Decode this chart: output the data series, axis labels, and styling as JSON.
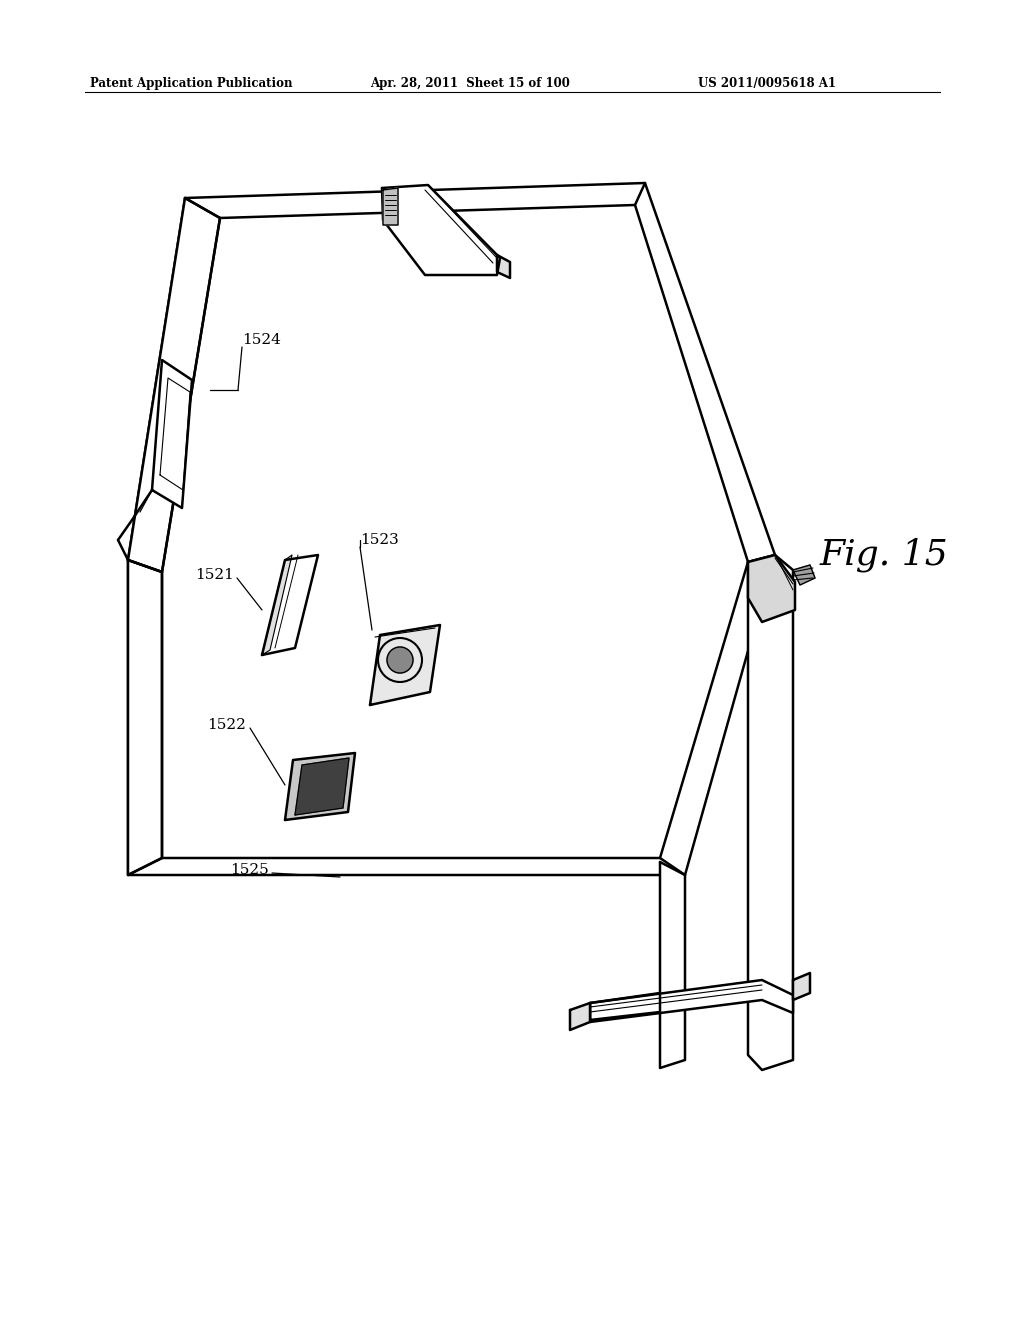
{
  "bg_color": "#ffffff",
  "header_left": "Patent Application Publication",
  "header_mid": "Apr. 28, 2011  Sheet 15 of 100",
  "header_right": "US 2011/0095618 A1",
  "fig_label": "Fig. 15"
}
